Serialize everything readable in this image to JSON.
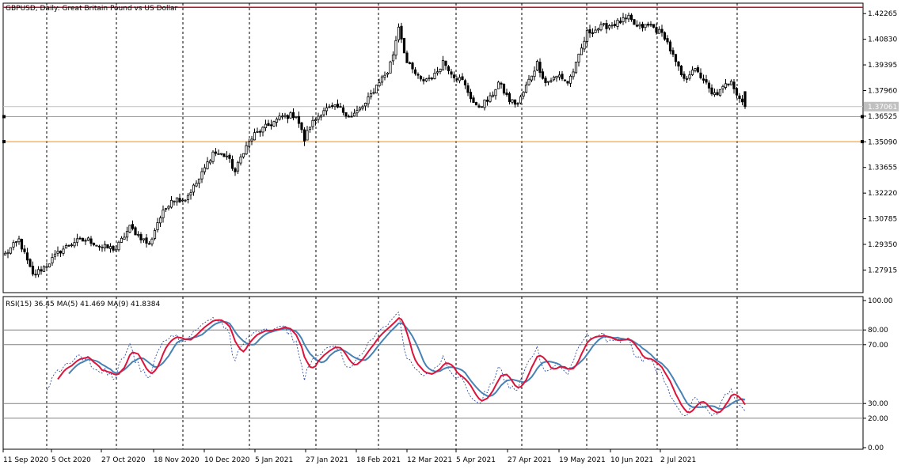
{
  "chart_data": [
    {
      "type": "candlestick",
      "title": "GBPUSD, Daily:  Great Britain Pound vs US Dollar",
      "symbol": "GBPUSD",
      "timeframe": "Daily",
      "description": "Great Britain Pound vs US Dollar",
      "current_price": "1.37061",
      "ylim": [
        1.2665,
        1.4285
      ],
      "y_ticks": [
        "1.42265",
        "1.40830",
        "1.39395",
        "1.37960",
        "1.36525",
        "1.35090",
        "1.33655",
        "1.32220",
        "1.30785",
        "1.29350",
        "1.27915"
      ],
      "x_ticks": [
        "11 Sep 2020",
        "5 Oct 2020",
        "27 Oct 2020",
        "18 Nov 2020",
        "10 Dec 2020",
        "5 Jan 2021",
        "27 Jan 2021",
        "18 Feb 2021",
        "12 Mar 2021",
        "5 Apr 2021",
        "27 Apr 2021",
        "19 May 2021",
        "10 Jun 2021",
        "2 Jul 2021"
      ],
      "horizontal_lines": [
        {
          "price": 1.4262,
          "color": "#c8102e"
        },
        {
          "price": 1.365,
          "color": "#ff8c00"
        },
        {
          "price": 1.351,
          "color": "#ff8c00"
        }
      ],
      "anchors": [
        [
          0,
          1.288
        ],
        [
          5,
          1.296
        ],
        [
          10,
          1.276
        ],
        [
          15,
          1.282
        ],
        [
          20,
          1.29
        ],
        [
          25,
          1.295
        ],
        [
          30,
          1.296
        ],
        [
          35,
          1.292
        ],
        [
          40,
          1.291
        ],
        [
          45,
          1.303
        ],
        [
          50,
          1.296
        ],
        [
          52,
          1.293
        ],
        [
          55,
          1.306
        ],
        [
          60,
          1.319
        ],
        [
          65,
          1.319
        ],
        [
          70,
          1.33
        ],
        [
          75,
          1.345
        ],
        [
          80,
          1.343
        ],
        [
          83,
          1.334
        ],
        [
          86,
          1.346
        ],
        [
          90,
          1.355
        ],
        [
          95,
          1.36
        ],
        [
          100,
          1.365
        ],
        [
          105,
          1.366
        ],
        [
          108,
          1.352
        ],
        [
          110,
          1.36
        ],
        [
          115,
          1.369
        ],
        [
          120,
          1.37
        ],
        [
          125,
          1.365
        ],
        [
          130,
          1.372
        ],
        [
          135,
          1.385
        ],
        [
          138,
          1.39
        ],
        [
          140,
          1.4
        ],
        [
          142,
          1.416
        ],
        [
          145,
          1.395
        ],
        [
          150,
          1.385
        ],
        [
          155,
          1.388
        ],
        [
          158,
          1.396
        ],
        [
          162,
          1.388
        ],
        [
          165,
          1.385
        ],
        [
          168,
          1.376
        ],
        [
          170,
          1.37
        ],
        [
          175,
          1.375
        ],
        [
          178,
          1.384
        ],
        [
          182,
          1.374
        ],
        [
          185,
          1.372
        ],
        [
          188,
          1.382
        ],
        [
          192,
          1.395
        ],
        [
          195,
          1.384
        ],
        [
          200,
          1.388
        ],
        [
          203,
          1.384
        ],
        [
          206,
          1.394
        ],
        [
          210,
          1.412
        ],
        [
          215,
          1.415
        ],
        [
          220,
          1.417
        ],
        [
          225,
          1.42
        ],
        [
          228,
          1.415
        ],
        [
          233,
          1.416
        ],
        [
          238,
          1.41
        ],
        [
          242,
          1.395
        ],
        [
          245,
          1.385
        ],
        [
          248,
          1.392
        ],
        [
          252,
          1.386
        ],
        [
          255,
          1.377
        ],
        [
          258,
          1.379
        ],
        [
          262,
          1.386
        ],
        [
          264,
          1.378
        ],
        [
          267,
          1.371
        ]
      ],
      "last_bar": {
        "open": 1.379,
        "high": 1.379,
        "low": 1.37,
        "close": 1.3706
      }
    },
    {
      "type": "line",
      "title": "RSI(15) 36.45 MA(5) 41.469 MA(9) 41.8384",
      "ylim": [
        0,
        100
      ],
      "y_ticks": [
        "100.00",
        "80.00",
        "70.00",
        "30.00",
        "20.00",
        "0.00"
      ],
      "levels": [
        80,
        70,
        30,
        20
      ],
      "series": [
        {
          "name": "RSI(15)",
          "value": "36.45",
          "color": "#1a3ea0",
          "style": "dotted"
        },
        {
          "name": "MA(5)",
          "value": "41.469",
          "color": "#dc143c"
        },
        {
          "name": "MA(9)",
          "value": "41.8384",
          "color": "#4682b4"
        }
      ]
    }
  ]
}
